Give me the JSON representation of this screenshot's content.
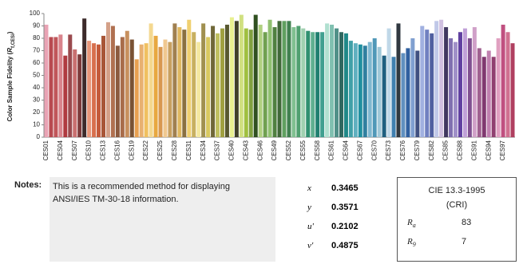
{
  "chart_data": {
    "type": "bar",
    "ylabel": {
      "text": "Color Sample Fidelity (",
      "symbol": "R",
      "subscript": "f,CESi",
      "close": ")"
    },
    "categories": [
      "CES01",
      null,
      null,
      "CES04",
      null,
      null,
      "CES07",
      null,
      null,
      "CES10",
      null,
      null,
      "CES13",
      null,
      null,
      "CES16",
      null,
      null,
      "CES19",
      null,
      null,
      "CES22",
      null,
      null,
      "CES25",
      null,
      null,
      "CES28",
      null,
      null,
      "CES31",
      null,
      null,
      "CES34",
      null,
      null,
      "CES37",
      null,
      null,
      "CES40",
      null,
      null,
      "CES43",
      null,
      null,
      "CES46",
      null,
      null,
      "CES49",
      null,
      null,
      "CES52",
      null,
      null,
      "CES55",
      null,
      null,
      "CES58",
      null,
      null,
      "CES61",
      null,
      null,
      "CES64",
      null,
      null,
      "CES67",
      null,
      null,
      "CES70",
      null,
      null,
      "CES73",
      null,
      null,
      "CES76",
      null,
      null,
      "CES79",
      null,
      null,
      "CES82",
      null,
      null,
      "CES85",
      null,
      null,
      "CES88",
      null,
      null,
      "CES91",
      null,
      null,
      "CES94",
      null,
      null,
      "CES97",
      null,
      null
    ],
    "values": [
      91,
      81,
      81,
      83,
      66,
      83,
      71,
      67,
      96,
      78,
      76,
      75,
      82,
      93,
      90,
      74,
      81,
      86,
      79,
      63,
      75,
      76,
      92,
      82,
      73,
      79,
      77,
      92,
      89,
      87,
      95,
      85,
      77,
      92,
      81,
      90,
      84,
      88,
      91,
      97,
      94,
      99,
      88,
      87,
      99,
      91,
      85,
      95,
      89,
      94,
      94,
      94,
      89,
      90,
      88,
      86,
      85,
      85,
      85,
      92,
      91,
      88,
      85,
      84,
      78,
      76,
      75,
      74,
      77,
      80,
      73,
      66,
      88,
      65,
      92,
      68,
      72,
      80,
      70,
      90,
      87,
      84,
      94,
      95,
      89,
      80,
      77,
      85,
      88,
      80,
      89,
      72,
      65,
      70,
      65,
      80,
      91,
      85,
      76
    ],
    "colors": [
      "#e9a3b4",
      "#b84a50",
      "#c0565a",
      "#d9848c",
      "#b03a40",
      "#9a4a4e",
      "#c97070",
      "#7d3a3a",
      "#3d2b2b",
      "#e8977a",
      "#d8704e",
      "#c45a3a",
      "#a85638",
      "#d4a088",
      "#b07050",
      "#8c5a3e",
      "#a86c4a",
      "#c8905e",
      "#7a5234",
      "#e8a050",
      "#e8b070",
      "#f0c060",
      "#f4d890",
      "#e8a840",
      "#d89850",
      "#f0c890",
      "#c8a060",
      "#a08050",
      "#e0b860",
      "#8a7040",
      "#f0d070",
      "#c8b060",
      "#f4e8a0",
      "#a09050",
      "#d8c860",
      "#706838",
      "#c0c060",
      "#a0a040",
      "#585830",
      "#e8f090",
      "#404028",
      "#d0e080",
      "#a0c040",
      "#80a040",
      "#305020",
      "#b0d080",
      "#70a050",
      "#90c070",
      "#508040",
      "#406838",
      "#60a060",
      "#408050",
      "#80c090",
      "#50a070",
      "#a0d0b0",
      "#309070",
      "#60b090",
      "#208070",
      "#40a090",
      "#b0e0d0",
      "#80c0b0",
      "#509088",
      "#306860",
      "#208888",
      "#40a0a8",
      "#60b0c0",
      "#2090a0",
      "#3080a0",
      "#80b8d0",
      "#5098b8",
      "#a0c8d8",
      "#206080",
      "#c0d8e8",
      "#4080b0",
      "#303840",
      "#6090c0",
      "#3060a0",
      "#80a0d0",
      "#405080",
      "#a0b0e0",
      "#7080c0",
      "#5060a0",
      "#c0c8e8",
      "#d0c0e0",
      "#403860",
      "#8070b0",
      "#a090c8",
      "#6040a0",
      "#c0a0d8",
      "#805090",
      "#d0a0c8",
      "#a06090",
      "#803870",
      "#c080b0",
      "#904070",
      "#e0a0c0",
      "#c05080",
      "#d07090",
      "#b04060"
    ],
    "ylim": [
      0,
      100
    ],
    "yticks": [
      0,
      10,
      20,
      30,
      40,
      50,
      60,
      70,
      80,
      90,
      100
    ]
  },
  "notes": {
    "label": "Notes:",
    "lines": [
      "This is a recommended method for displaying",
      "ANSI/IES TM-30-18 information."
    ]
  },
  "chromaticity": [
    {
      "symbol": "x",
      "value": 0.3465
    },
    {
      "symbol": "y",
      "value": 0.3571
    },
    {
      "symbol": "u'",
      "value": 0.2102
    },
    {
      "symbol": "v'",
      "value": 0.4875
    }
  ],
  "cri": {
    "title": "CIE 13.3-1995",
    "subtitle": "(CRI)",
    "rows": [
      {
        "symbol": "R",
        "subscript": "a",
        "value": 83
      },
      {
        "symbol": "R",
        "subscript": "9",
        "value": 7
      }
    ]
  }
}
